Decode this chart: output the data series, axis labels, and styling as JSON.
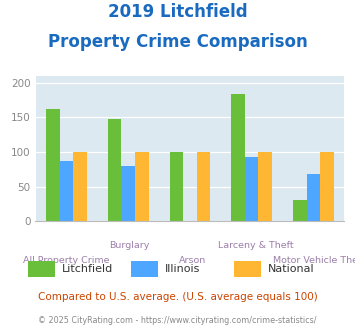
{
  "title_line1": "2019 Litchfield",
  "title_line2": "Property Crime Comparison",
  "categories": [
    "All Property Crime",
    "Burglary",
    "Arson",
    "Larceny & Theft",
    "Motor Vehicle Theft"
  ],
  "series": {
    "Litchfield": [
      162,
      147,
      100,
      184,
      30
    ],
    "Illinois": [
      87,
      79,
      0,
      93,
      68
    ],
    "National": [
      100,
      100,
      100,
      100,
      100
    ]
  },
  "colors": {
    "Litchfield": "#6abf3a",
    "Illinois": "#4da6ff",
    "National": "#ffb733"
  },
  "ylim": [
    0,
    210
  ],
  "yticks": [
    0,
    50,
    100,
    150,
    200
  ],
  "title_fontsize": 12,
  "title_color": "#1a6bbf",
  "xlabel_color": "#9b7faa",
  "tick_color": "#888888",
  "plot_bg": "#dce9f0",
  "footer_text": "Compared to U.S. average. (U.S. average equals 100)",
  "copyright_text": "© 2025 CityRating.com - https://www.cityrating.com/crime-statistics/",
  "footer_color": "#cc4400",
  "copyright_color": "#888888",
  "bar_width": 0.22,
  "group_positions": [
    0,
    1,
    2,
    3,
    4
  ],
  "stagger_upper": [
    1,
    3
  ],
  "stagger_lower": [
    0,
    2,
    4
  ]
}
